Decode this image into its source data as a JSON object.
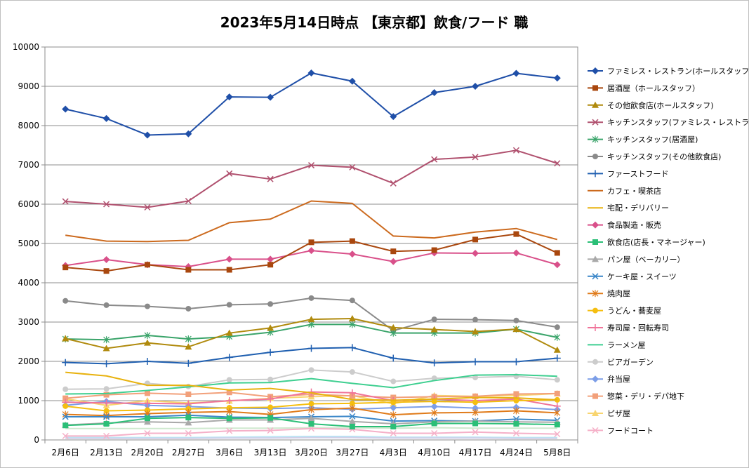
{
  "chart_data": {
    "type": "line",
    "title": "2023年5月14日時点 【東京都】飲食/フード 職",
    "xlabel": "",
    "ylabel": "",
    "categories": [
      "2月6日",
      "2月13日",
      "2月20日",
      "2月27日",
      "3月6日",
      "3月13日",
      "3月20日",
      "3月27日",
      "4月3日",
      "4月10日",
      "4月17日",
      "4月24日",
      "5月8日"
    ],
    "ylim": [
      0,
      10000
    ],
    "yticks": [
      0,
      1000,
      2000,
      3000,
      4000,
      5000,
      6000,
      7000,
      8000,
      9000,
      10000
    ],
    "grid": true,
    "legend_position": "right",
    "series": [
      {
        "name": "ファミレス・レストラン(ホールスタッフ)",
        "color": "#1f4fa8",
        "marker": "diamond",
        "values": [
          8420,
          8180,
          7760,
          7790,
          8730,
          8720,
          9340,
          9130,
          8230,
          8840,
          9000,
          9330,
          9210
        ]
      },
      {
        "name": "居酒屋（ホールスタッフ）",
        "color": "#a9470e",
        "marker": "square",
        "values": [
          4390,
          4300,
          4460,
          4330,
          4330,
          4460,
          5030,
          5060,
          4800,
          4830,
          5100,
          5240,
          4760
        ]
      },
      {
        "name": "その他飲食店(ホールスタッフ)",
        "color": "#b08a0d",
        "marker": "triangle",
        "values": [
          2580,
          2330,
          2470,
          2370,
          2720,
          2850,
          3070,
          3090,
          2860,
          2810,
          2760,
          2820,
          2290
        ]
      },
      {
        "name": "キッチンスタッフ(ファミレス・レストラン)",
        "color": "#b0506e",
        "marker": "x",
        "values": [
          6070,
          6000,
          5920,
          6080,
          6780,
          6640,
          6990,
          6940,
          6530,
          7140,
          7200,
          7370,
          7040
        ]
      },
      {
        "name": "キッチンスタッフ(居酒屋)",
        "color": "#3aa46a",
        "marker": "asterisk",
        "values": [
          2570,
          2550,
          2660,
          2570,
          2630,
          2740,
          2940,
          2940,
          2720,
          2720,
          2720,
          2820,
          2610
        ]
      },
      {
        "name": "キッチンスタッフ(その他飲食店)",
        "color": "#8a8a8a",
        "marker": "circle",
        "values": [
          3540,
          3430,
          3400,
          3340,
          3440,
          3460,
          3610,
          3550,
          2780,
          3070,
          3060,
          3040,
          2870
        ]
      },
      {
        "name": "ファーストフード",
        "color": "#1f5fb0",
        "marker": "plus",
        "values": [
          1970,
          1940,
          2000,
          1950,
          2100,
          2230,
          2330,
          2350,
          2080,
          1960,
          1990,
          1990,
          2080
        ]
      },
      {
        "name": "カフェ・喫茶店",
        "color": "#cc6a1e",
        "marker": "none",
        "values": [
          5210,
          5060,
          5050,
          5080,
          5530,
          5620,
          6080,
          6020,
          5190,
          5140,
          5290,
          5380,
          5100
        ]
      },
      {
        "name": "宅配・デリバリー",
        "color": "#e8b20e",
        "marker": "none",
        "values": [
          1720,
          1630,
          1390,
          1390,
          1270,
          1310,
          1200,
          1030,
          1010,
          1040,
          1080,
          1070,
          1020
        ]
      },
      {
        "name": "食品製造・販売",
        "color": "#d9508a",
        "marker": "diamond",
        "values": [
          4440,
          4590,
          4460,
          4410,
          4600,
          4600,
          4820,
          4730,
          4540,
          4760,
          4750,
          4760,
          4460
        ]
      },
      {
        "name": "飲食店(店長・マネージャー)",
        "color": "#2bbf77",
        "marker": "square",
        "values": [
          370,
          410,
          550,
          570,
          550,
          560,
          410,
          340,
          340,
          420,
          420,
          410,
          390
        ]
      },
      {
        "name": "パン屋（ベーカリー）",
        "color": "#a9a9a9",
        "marker": "triangle",
        "values": [
          380,
          430,
          460,
          440,
          510,
          510,
          550,
          470,
          410,
          460,
          480,
          460,
          450
        ]
      },
      {
        "name": "ケーキ屋・スイーツ",
        "color": "#3a86c8",
        "marker": "x",
        "values": [
          590,
          590,
          590,
          630,
          580,
          570,
          590,
          600,
          480,
          490,
          480,
          530,
          500
        ]
      },
      {
        "name": "焼肉屋",
        "color": "#e07b1a",
        "marker": "asterisk",
        "values": [
          650,
          620,
          670,
          700,
          720,
          650,
          770,
          810,
          640,
          690,
          700,
          740,
          690
        ]
      },
      {
        "name": "うどん・蕎麦屋",
        "color": "#f5be10",
        "marker": "circle",
        "values": [
          860,
          740,
          760,
          790,
          820,
          830,
          920,
          930,
          960,
          980,
          960,
          1000,
          1020
        ]
      },
      {
        "name": "寿司屋・回転寿司",
        "color": "#f0749a",
        "marker": "plus",
        "values": [
          960,
          940,
          930,
          920,
          1000,
          1040,
          1220,
          1200,
          1000,
          1040,
          1000,
          1040,
          860
        ]
      },
      {
        "name": "ラーメン屋",
        "color": "#3ecf90",
        "marker": "none",
        "values": [
          1170,
          1180,
          1260,
          1350,
          1450,
          1460,
          1560,
          1440,
          1330,
          1510,
          1650,
          1660,
          1620
        ]
      },
      {
        "name": "ビアガーデン",
        "color": "#cccccc",
        "marker": "circle",
        "values": [
          1290,
          1300,
          1440,
          1360,
          1530,
          1540,
          1780,
          1730,
          1490,
          1570,
          1590,
          1620,
          1530
        ]
      },
      {
        "name": "弁当屋",
        "color": "#7c9ee8",
        "marker": "diamond",
        "values": [
          880,
          980,
          880,
          850,
          810,
          800,
          820,
          780,
          820,
          850,
          810,
          830,
          770
        ]
      },
      {
        "name": "惣菜・デリ・デパ地下",
        "color": "#f2a07a",
        "marker": "square",
        "values": [
          1060,
          1150,
          1190,
          1160,
          1210,
          1100,
          1160,
          1120,
          1080,
          1100,
          1110,
          1170,
          1180
        ]
      },
      {
        "name": "ピザ屋",
        "color": "#f8d570",
        "marker": "triangle",
        "values": [
          1050,
          880,
          1000,
          940,
          990,
          1060,
          1100,
          1130,
          920,
          1130,
          1110,
          1130,
          1180
        ]
      },
      {
        "name": "フードコート",
        "color": "#f5b0c8",
        "marker": "x",
        "values": [
          100,
          100,
          170,
          170,
          230,
          240,
          290,
          270,
          170,
          170,
          200,
          170,
          150
        ]
      }
    ],
    "extra_lines": [
      {
        "color": "#b9e4f4",
        "values": [
          60,
          60,
          60,
          60,
          70,
          80,
          90,
          90,
          70,
          70,
          70,
          60,
          60
        ]
      },
      {
        "color": "#cfe9cf",
        "values": [
          290,
          290,
          290,
          290,
          300,
          300,
          310,
          310,
          300,
          310,
          300,
          300,
          300
        ]
      },
      {
        "color": "#d0d0e8",
        "values": [
          40,
          40,
          40,
          40,
          50,
          50,
          60,
          60,
          50,
          50,
          50,
          40,
          40
        ]
      }
    ]
  }
}
